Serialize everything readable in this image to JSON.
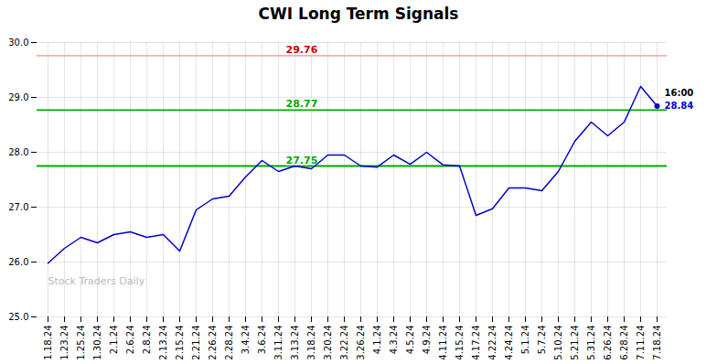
{
  "chart_data": {
    "type": "line",
    "title": "CWI Long Term Signals",
    "categories": [
      "1.18.24",
      "1.23.24",
      "1.25.24",
      "1.30.24",
      "2.1.24",
      "2.6.24",
      "2.8.24",
      "2.13.24",
      "2.15.24",
      "2.21.24",
      "2.26.24",
      "2.28.24",
      "3.4.24",
      "3.6.24",
      "3.11.24",
      "3.13.24",
      "3.18.24",
      "3.20.24",
      "3.22.24",
      "3.26.24",
      "4.1.24",
      "4.3.24",
      "4.5.24",
      "4.9.24",
      "4.11.24",
      "4.15.24",
      "4.17.24",
      "4.22.24",
      "4.24.24",
      "5.1.24",
      "5.7.24",
      "5.10.24",
      "5.21.24",
      "5.31.24",
      "6.26.24",
      "6.28.24",
      "7.11.24",
      "7.18.24"
    ],
    "values": [
      25.98,
      26.25,
      26.45,
      26.35,
      26.5,
      26.55,
      26.45,
      26.5,
      26.2,
      26.95,
      27.15,
      27.2,
      27.55,
      27.85,
      27.65,
      27.75,
      27.7,
      27.95,
      27.95,
      27.75,
      27.73,
      27.95,
      27.78,
      28.0,
      27.77,
      27.75,
      26.85,
      26.97,
      27.35,
      27.35,
      27.3,
      27.65,
      28.2,
      28.55,
      28.3,
      28.55,
      29.2,
      28.84
    ],
    "color": "#0000cc",
    "hlines": [
      {
        "value": 29.76,
        "label": "29.76",
        "color": "#ffaaaa",
        "label_color": "#cc0000"
      },
      {
        "value": 28.77,
        "label": "28.77",
        "color": "#00aa00",
        "label_color": "#00aa00"
      },
      {
        "value": 27.75,
        "label": "27.75",
        "color": "#00aa00",
        "label_color": "#00aa00"
      }
    ],
    "annotations": [
      {
        "text": "16:00",
        "x": "7.18.24",
        "y": 28.84,
        "color": "#000000"
      },
      {
        "text": "28.84",
        "x": "7.18.24",
        "y": 28.84,
        "color": "#0000cc"
      }
    ],
    "watermark": "Stock Traders Daily",
    "ylim": [
      25.0,
      30.0
    ],
    "yticks": [
      25,
      26,
      27,
      28,
      29,
      30
    ],
    "grid": true
  }
}
